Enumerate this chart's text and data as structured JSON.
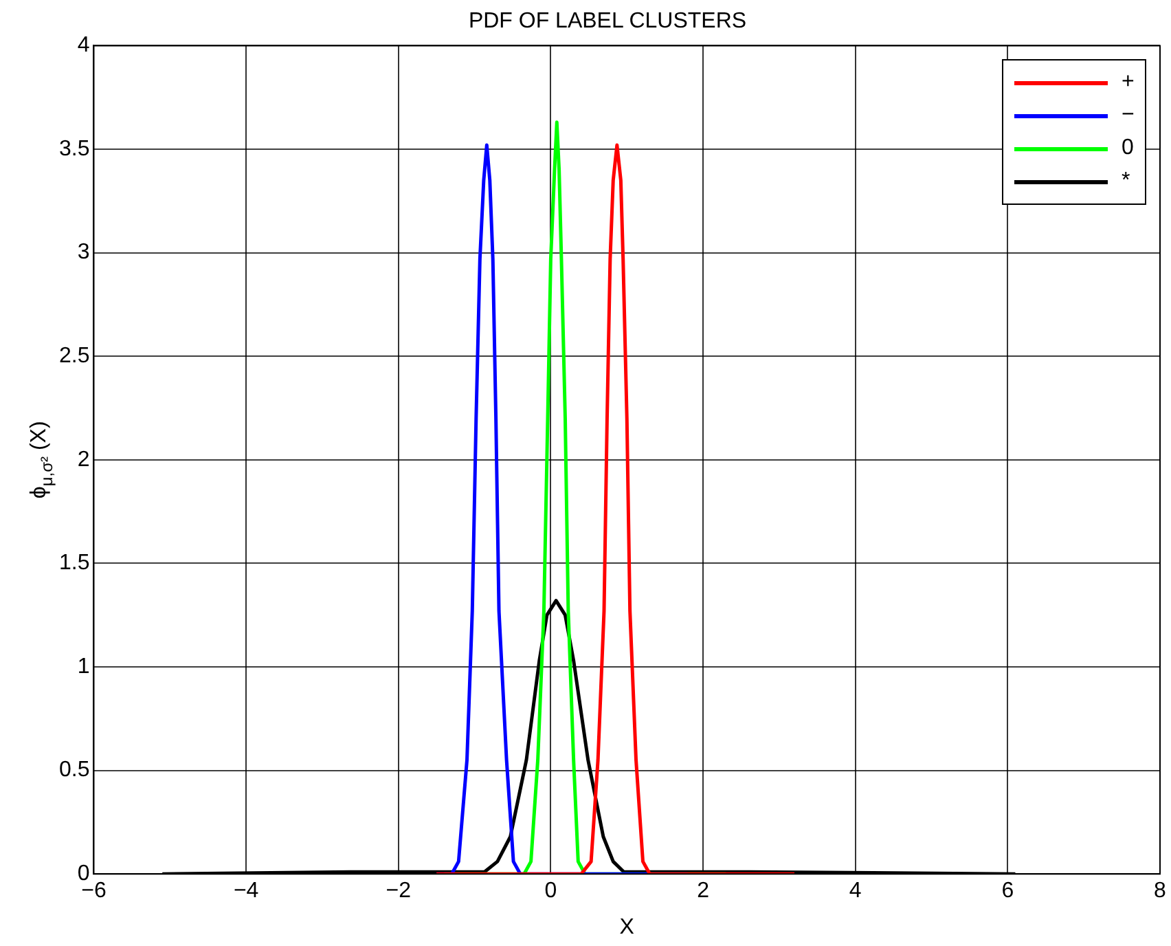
{
  "chart_data": {
    "type": "line",
    "title": "PDF OF LABEL CLUSTERS",
    "xlabel": "X",
    "ylabel": "ϕ$_{μ,σ²}$ (X)",
    "xlim": [
      -6,
      8
    ],
    "xticks": [
      -6,
      -4,
      -2,
      0,
      2,
      4,
      6,
      8
    ],
    "ylim": [
      0,
      4
    ],
    "yticks": [
      0,
      0.5,
      1,
      1.5,
      2,
      2.5,
      3,
      3.5,
      4
    ],
    "grid": true,
    "legend": "top right",
    "marker": "none",
    "line_style": "solid",
    "series": [
      {
        "name": "+",
        "color": "#ff0000",
        "x": [
          -1.5,
          0.4,
          0.53,
          0.62,
          0.7,
          0.74,
          0.78,
          0.82,
          0.87,
          0.92,
          0.95,
          1.0,
          1.04,
          1.12,
          1.21,
          1.3,
          2.0,
          3.2
        ],
        "values": [
          0,
          0,
          0.06,
          0.55,
          1.27,
          2.2,
          2.97,
          3.35,
          3.52,
          3.35,
          2.97,
          2.2,
          1.27,
          0.55,
          0.06,
          0,
          0,
          0
        ]
      },
      {
        "name": "−",
        "color": "#0000ff",
        "x": [
          -1.5,
          -1.3,
          -1.21,
          -1.1,
          -1.03,
          -0.98,
          -0.93,
          -0.88,
          -0.84,
          -0.8,
          -0.76,
          -0.72,
          -0.68,
          -0.58,
          -0.49,
          -0.4,
          1.0,
          1.8
        ],
        "values": [
          0,
          0,
          0.06,
          0.55,
          1.27,
          2.2,
          2.97,
          3.35,
          3.52,
          3.35,
          2.97,
          2.2,
          1.27,
          0.55,
          0.06,
          0,
          0,
          0
        ]
      },
      {
        "name": "0",
        "color": "#00ff00",
        "x": [
          -1.4,
          -0.35,
          -0.26,
          -0.17,
          -0.09,
          -0.04,
          0.0,
          0.05,
          0.08,
          0.11,
          0.14,
          0.19,
          0.23,
          0.3,
          0.36,
          0.45,
          2.3
        ],
        "values": [
          0,
          0,
          0.06,
          0.55,
          1.27,
          2.2,
          2.97,
          3.4,
          3.63,
          3.4,
          2.97,
          2.2,
          1.27,
          0.55,
          0.06,
          0,
          0
        ]
      },
      {
        "name": "*",
        "color": "#000000",
        "x": [
          -5.1,
          -2.5,
          -1.2,
          -0.87,
          -0.7,
          -0.53,
          -0.32,
          -0.15,
          -0.05,
          0.07,
          0.19,
          0.3,
          0.49,
          0.69,
          0.82,
          0.96,
          1.3,
          2.6,
          6.1
        ],
        "values": [
          0,
          0.01,
          0.01,
          0.01,
          0.06,
          0.18,
          0.55,
          1.03,
          1.25,
          1.32,
          1.25,
          1.03,
          0.55,
          0.18,
          0.06,
          0.01,
          0.01,
          0.01,
          0
        ]
      }
    ]
  }
}
